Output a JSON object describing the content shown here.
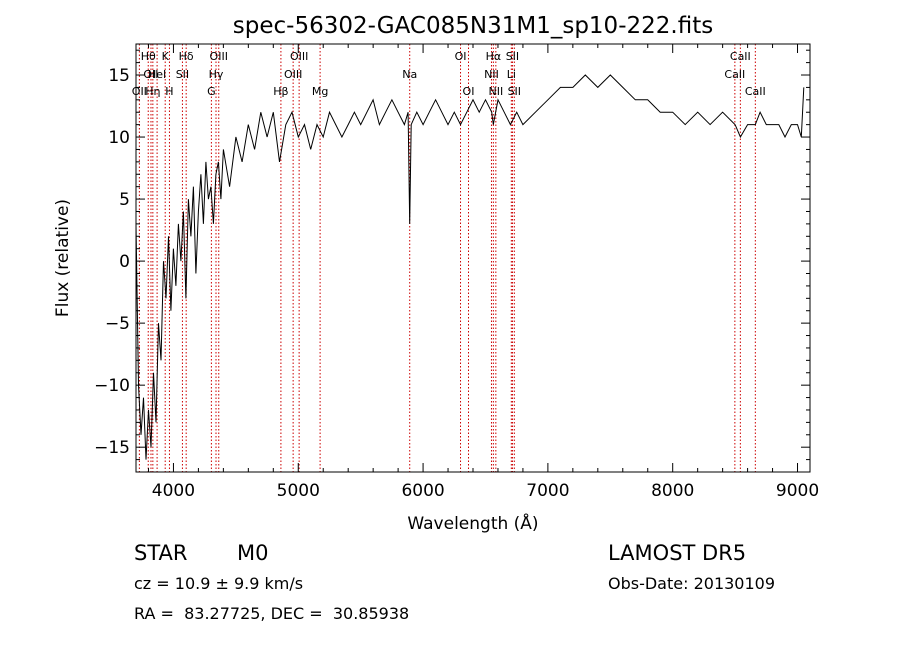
{
  "chart_data": {
    "type": "line",
    "title": "spec-56302-GAC085N31M1_sp10-222.fits",
    "xlabel": "Wavelength (Å)",
    "ylabel": "Flux (relative)",
    "xlim": [
      3700,
      9100
    ],
    "ylim": [
      -17,
      17.5
    ],
    "x_ticks": [
      4000,
      5000,
      6000,
      7000,
      8000,
      9000
    ],
    "y_ticks": [
      -15,
      -10,
      -5,
      0,
      5,
      10,
      15
    ],
    "grid": false,
    "line_color": "#000000",
    "marker_color": "#cc0000",
    "series": [
      {
        "x": [
          3700,
          3720,
          3740,
          3760,
          3780,
          3800,
          3820,
          3840,
          3860,
          3880,
          3900,
          3920,
          3940,
          3960,
          3980,
          4000,
          4020,
          4040,
          4060,
          4080,
          4100,
          4120,
          4140,
          4160,
          4180,
          4200,
          4220,
          4240,
          4260,
          4280,
          4300,
          4320,
          4340,
          4360,
          4380,
          4400,
          4450,
          4500,
          4550,
          4600,
          4650,
          4700,
          4750,
          4800,
          4850,
          4900,
          4950,
          5000,
          5050,
          5100,
          5150,
          5200,
          5250,
          5300,
          5350,
          5400,
          5450,
          5500,
          5550,
          5600,
          5650,
          5700,
          5750,
          5800,
          5850,
          5880,
          5893,
          5905,
          5950,
          6000,
          6050,
          6100,
          6150,
          6200,
          6250,
          6300,
          6350,
          6400,
          6450,
          6500,
          6550,
          6563,
          6600,
          6650,
          6700,
          6750,
          6800,
          6900,
          7000,
          7100,
          7200,
          7300,
          7400,
          7500,
          7600,
          7700,
          7800,
          7900,
          8000,
          8100,
          8200,
          8300,
          8400,
          8500,
          8542,
          8600,
          8662,
          8700,
          8750,
          8800,
          8850,
          8900,
          8950,
          9000,
          9030,
          9050
        ],
        "y": [
          3,
          -10,
          -14,
          -11,
          -16,
          -12,
          -15,
          -9,
          -13,
          -5,
          -8,
          0,
          -3,
          2,
          -4,
          1,
          -2,
          3,
          0,
          4,
          -3,
          5,
          2,
          6,
          -1,
          4,
          7,
          3,
          8,
          5,
          6,
          3,
          7,
          8,
          5,
          9,
          6,
          10,
          8,
          11,
          9,
          12,
          10,
          12,
          8,
          11,
          12,
          10,
          11,
          9,
          11,
          10,
          12,
          11,
          10,
          11,
          12,
          11,
          12,
          13,
          11,
          12,
          13,
          12,
          11,
          12,
          3,
          11,
          12,
          11,
          12,
          13,
          12,
          11,
          12,
          11,
          12,
          13,
          12,
          13,
          12,
          11,
          13,
          12,
          11,
          12,
          11,
          12,
          13,
          14,
          14,
          15,
          14,
          15,
          14,
          13,
          13,
          12,
          12,
          11,
          12,
          11,
          12,
          11,
          10,
          11,
          11,
          12,
          11,
          11,
          11,
          10,
          11,
          11,
          10,
          14
        ]
      }
    ],
    "line_markers": [
      {
        "x": 3727,
        "label": "OII",
        "row": 2
      },
      {
        "x": 3798,
        "label": "Hθ",
        "row": 0
      },
      {
        "x": 3820,
        "label": "OII",
        "row": 1
      },
      {
        "x": 3835,
        "label": "Hη",
        "row": 2
      },
      {
        "x": 3869,
        "label": "HeI",
        "row": 1
      },
      {
        "x": 3934,
        "label": "K",
        "row": 0
      },
      {
        "x": 3968,
        "label": "H",
        "row": 2
      },
      {
        "x": 4072,
        "label": "SII",
        "row": 1
      },
      {
        "x": 4102,
        "label": "Hδ",
        "row": 0
      },
      {
        "x": 4304,
        "label": "G",
        "row": 2
      },
      {
        "x": 4341,
        "label": "Hγ",
        "row": 1
      },
      {
        "x": 4363,
        "label": "OIII",
        "row": 0
      },
      {
        "x": 4861,
        "label": "Hβ",
        "row": 2
      },
      {
        "x": 4959,
        "label": "OIII",
        "row": 1
      },
      {
        "x": 5007,
        "label": "OIII",
        "row": 0
      },
      {
        "x": 5175,
        "label": "Mg",
        "row": 2
      },
      {
        "x": 5893,
        "label": "Na",
        "row": 1
      },
      {
        "x": 6300,
        "label": "OI",
        "row": 0
      },
      {
        "x": 6364,
        "label": "OI",
        "row": 2
      },
      {
        "x": 6548,
        "label": "NII",
        "row": 1
      },
      {
        "x": 6563,
        "label": "Hα",
        "row": 0
      },
      {
        "x": 6583,
        "label": "NII",
        "row": 2
      },
      {
        "x": 6707,
        "label": "Li",
        "row": 1
      },
      {
        "x": 6716,
        "label": "SII",
        "row": 0
      },
      {
        "x": 6731,
        "label": "SII",
        "row": 2
      },
      {
        "x": 8498,
        "label": "CaII",
        "row": 1
      },
      {
        "x": 8542,
        "label": "CaII",
        "row": 0
      },
      {
        "x": 8662,
        "label": "CaII",
        "row": 2
      }
    ]
  },
  "info": {
    "class_label": "STAR",
    "subclass_label": "M0",
    "survey": "LAMOST DR5",
    "cz": "cz = 10.9 ± 9.9 km/s",
    "obs_date": "Obs-Date: 20130109",
    "coords": "RA =  83.27725, DEC =  30.85938"
  }
}
